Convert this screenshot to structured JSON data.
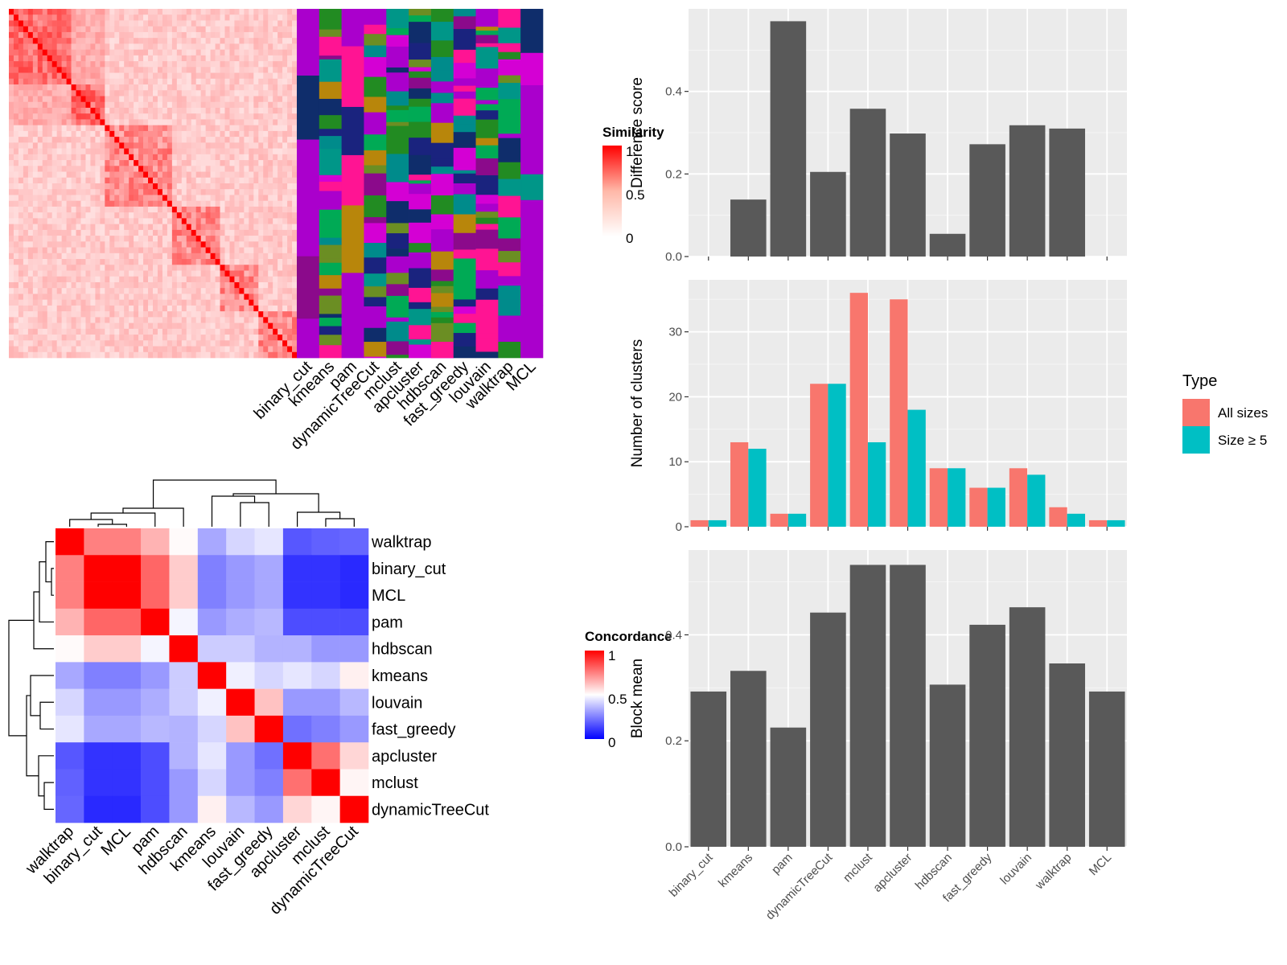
{
  "chart_data": [
    {
      "type": "heatmap",
      "legend_title": "Similarity",
      "legend_ticks": [
        "1",
        "0.5",
        "0"
      ],
      "columns": [
        "binary_cut",
        "kmeans",
        "pam",
        "dynamicTreeCut",
        "mclust",
        "apcluster",
        "hdbscan",
        "fast_greedy",
        "louvain",
        "walktrap",
        "MCL"
      ],
      "colors": {
        "high": "#ff0000",
        "low": "#ffffff"
      }
    },
    {
      "type": "heatmap",
      "legend_title": "Concordance",
      "legend_ticks": [
        "1",
        "0.5",
        "0"
      ],
      "rows": [
        "walktrap",
        "binary_cut",
        "MCL",
        "pam",
        "hdbscan",
        "kmeans",
        "louvain",
        "fast_greedy",
        "apcluster",
        "mclust",
        "dynamicTreeCut"
      ],
      "columns": [
        "walktrap",
        "binary_cut",
        "MCL",
        "pam",
        "hdbscan",
        "kmeans",
        "louvain",
        "fast_greedy",
        "apcluster",
        "mclust",
        "dynamicTreeCut"
      ],
      "values": [
        [
          1.0,
          0.75,
          0.75,
          0.65,
          0.51,
          0.33,
          0.42,
          0.45,
          0.17,
          0.19,
          0.2
        ],
        [
          0.75,
          1.0,
          1.0,
          0.8,
          0.6,
          0.25,
          0.3,
          0.33,
          0.1,
          0.1,
          0.08
        ],
        [
          0.75,
          1.0,
          1.0,
          0.8,
          0.6,
          0.25,
          0.3,
          0.33,
          0.1,
          0.1,
          0.08
        ],
        [
          0.65,
          0.8,
          0.8,
          1.0,
          0.48,
          0.3,
          0.34,
          0.36,
          0.15,
          0.15,
          0.15
        ],
        [
          0.51,
          0.6,
          0.6,
          0.48,
          1.0,
          0.4,
          0.4,
          0.35,
          0.35,
          0.3,
          0.3
        ],
        [
          0.33,
          0.25,
          0.25,
          0.3,
          0.4,
          1.0,
          0.47,
          0.42,
          0.45,
          0.42,
          0.53
        ],
        [
          0.42,
          0.3,
          0.3,
          0.34,
          0.4,
          0.47,
          1.0,
          0.62,
          0.3,
          0.3,
          0.36
        ],
        [
          0.45,
          0.33,
          0.33,
          0.36,
          0.35,
          0.42,
          0.62,
          1.0,
          0.22,
          0.25,
          0.3
        ],
        [
          0.17,
          0.1,
          0.1,
          0.15,
          0.35,
          0.45,
          0.3,
          0.22,
          1.0,
          0.78,
          0.58
        ],
        [
          0.19,
          0.1,
          0.1,
          0.15,
          0.3,
          0.42,
          0.3,
          0.25,
          0.78,
          1.0,
          0.52
        ],
        [
          0.2,
          0.08,
          0.08,
          0.15,
          0.3,
          0.53,
          0.36,
          0.3,
          0.58,
          0.52,
          1.0
        ]
      ],
      "colors": {
        "high": "#ff0000",
        "mid": "#ffffff",
        "low": "#0000ff"
      }
    },
    {
      "type": "bar",
      "ylabel": "Difference score",
      "categories": [
        "binary_cut",
        "kmeans",
        "pam",
        "dynamicTreeCut",
        "mclust",
        "apcluster",
        "hdbscan",
        "fast_greedy",
        "louvain",
        "walktrap",
        "MCL"
      ],
      "values": [
        0,
        0.138,
        0.57,
        0.205,
        0.358,
        0.298,
        0.055,
        0.272,
        0.318,
        0.31,
        0
      ],
      "ylim": [
        0,
        0.6
      ],
      "yticks": [
        "0.0",
        "0.2",
        "0.4"
      ],
      "color": "#595959"
    },
    {
      "type": "bar",
      "ylabel": "Number of clusters",
      "categories": [
        "binary_cut",
        "kmeans",
        "pam",
        "dynamicTreeCut",
        "mclust",
        "apcluster",
        "hdbscan",
        "fast_greedy",
        "louvain",
        "walktrap",
        "MCL"
      ],
      "series": [
        {
          "name": "All sizes",
          "values": [
            1,
            13,
            2,
            22,
            36,
            35,
            9,
            6,
            9,
            3,
            1
          ],
          "color": "#f8766d"
        },
        {
          "name": "Size ≥ 5",
          "values": [
            1,
            12,
            2,
            22,
            13,
            18,
            9,
            6,
            8,
            2,
            1
          ],
          "color": "#00bfc4"
        }
      ],
      "ylim": [
        0,
        38
      ],
      "yticks": [
        "0",
        "10",
        "20",
        "30"
      ],
      "legend_title": "Type",
      "legend_position": "right"
    },
    {
      "type": "bar",
      "ylabel": "Block mean",
      "categories": [
        "binary_cut",
        "kmeans",
        "pam",
        "dynamicTreeCut",
        "mclust",
        "apcluster",
        "hdbscan",
        "fast_greedy",
        "louvain",
        "walktrap",
        "MCL"
      ],
      "values": [
        0.293,
        0.332,
        0.225,
        0.442,
        0.532,
        0.532,
        0.306,
        0.419,
        0.452,
        0.346,
        0.293
      ],
      "ylim": [
        0,
        0.56
      ],
      "yticks": [
        "0.0",
        "0.2",
        "0.4"
      ],
      "color": "#595959"
    }
  ]
}
